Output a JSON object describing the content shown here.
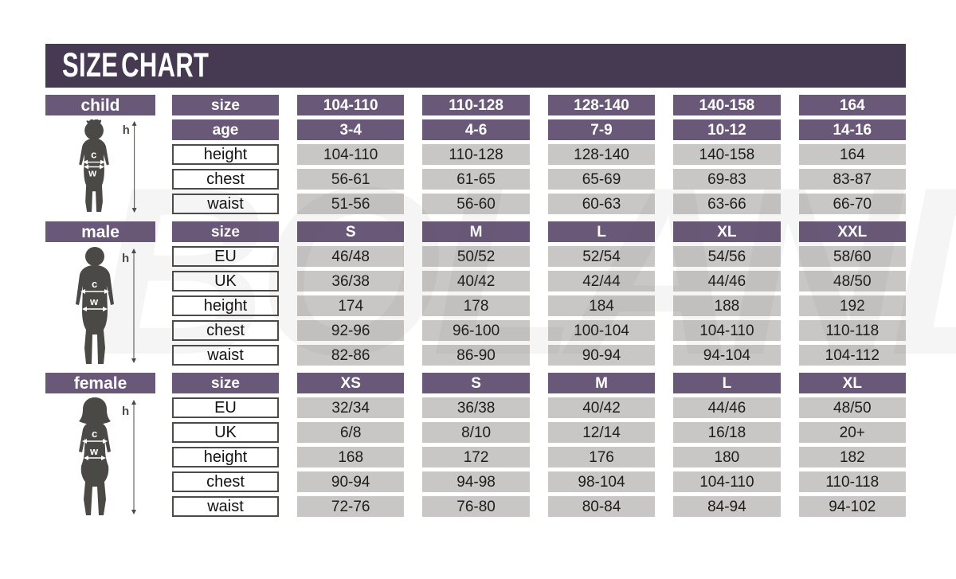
{
  "title": "SIZE CHART",
  "watermark": "BOLAND",
  "colors": {
    "title_bar": "#453a52",
    "header_cell": "#695877",
    "value_cell": "#c8c7c5",
    "figure_silhouette": "#4a4946",
    "label_cell_border": "#4d4a47"
  },
  "figure": {
    "height_label": "h",
    "chest_label": "c",
    "waist_label": "w"
  },
  "sections": [
    {
      "label": "child",
      "rows": [
        {
          "label": "size",
          "style": "header",
          "values": [
            "104-110",
            "110-128",
            "128-140",
            "140-158",
            "164"
          ]
        },
        {
          "label": "age",
          "style": "header",
          "values": [
            "3-4",
            "4-6",
            "7-9",
            "10-12",
            "14-16"
          ]
        },
        {
          "label": "height",
          "style": "plain",
          "values": [
            "104-110",
            "110-128",
            "128-140",
            "140-158",
            "164"
          ]
        },
        {
          "label": "chest",
          "style": "plain",
          "values": [
            "56-61",
            "61-65",
            "65-69",
            "69-83",
            "83-87"
          ]
        },
        {
          "label": "waist",
          "style": "plain",
          "values": [
            "51-56",
            "56-60",
            "60-63",
            "63-66",
            "66-70"
          ]
        }
      ]
    },
    {
      "label": "male",
      "rows": [
        {
          "label": "size",
          "style": "header",
          "values": [
            "S",
            "M",
            "L",
            "XL",
            "XXL"
          ]
        },
        {
          "label": "EU",
          "style": "plain",
          "values": [
            "46/48",
            "50/52",
            "52/54",
            "54/56",
            "58/60"
          ]
        },
        {
          "label": "UK",
          "style": "plain",
          "values": [
            "36/38",
            "40/42",
            "42/44",
            "44/46",
            "48/50"
          ]
        },
        {
          "label": "height",
          "style": "plain",
          "values": [
            "174",
            "178",
            "184",
            "188",
            "192"
          ]
        },
        {
          "label": "chest",
          "style": "plain",
          "values": [
            "92-96",
            "96-100",
            "100-104",
            "104-110",
            "110-118"
          ]
        },
        {
          "label": "waist",
          "style": "plain",
          "values": [
            "82-86",
            "86-90",
            "90-94",
            "94-104",
            "104-112"
          ]
        }
      ]
    },
    {
      "label": "female",
      "rows": [
        {
          "label": "size",
          "style": "header",
          "values": [
            "XS",
            "S",
            "M",
            "L",
            "XL"
          ]
        },
        {
          "label": "EU",
          "style": "plain",
          "values": [
            "32/34",
            "36/38",
            "40/42",
            "44/46",
            "48/50"
          ]
        },
        {
          "label": "UK",
          "style": "plain",
          "values": [
            "6/8",
            "8/10",
            "12/14",
            "16/18",
            "20+"
          ]
        },
        {
          "label": "height",
          "style": "plain",
          "values": [
            "168",
            "172",
            "176",
            "180",
            "182"
          ]
        },
        {
          "label": "chest",
          "style": "plain",
          "values": [
            "90-94",
            "94-98",
            "98-104",
            "104-110",
            "110-118"
          ]
        },
        {
          "label": "waist",
          "style": "plain",
          "values": [
            "72-76",
            "76-80",
            "80-84",
            "84-94",
            "94-102"
          ]
        }
      ]
    }
  ]
}
